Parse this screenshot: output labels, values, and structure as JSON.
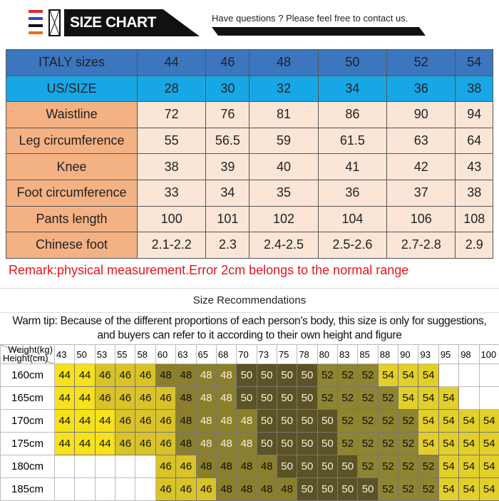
{
  "header": {
    "logo_text": "SIZE CHART",
    "contact": "Have questions ? Please feel free to contact us.",
    "stripe_colors": [
      "#e42a26",
      "#2350c8",
      "#111111",
      "#ee6a1e"
    ]
  },
  "size_table": {
    "header_row": {
      "label": "ITALY sizes",
      "values": [
        "44",
        "46",
        "48",
        "50",
        "52",
        "54"
      ]
    },
    "us_row": {
      "label": "US/SIZE",
      "values": [
        "28",
        "30",
        "32",
        "34",
        "36",
        "38"
      ]
    },
    "rows": [
      {
        "label": "Waistline",
        "values": [
          "72",
          "76",
          "81",
          "86",
          "90",
          "94"
        ]
      },
      {
        "label": "Leg circumference",
        "values": [
          "55",
          "56.5",
          "59",
          "61.5",
          "63",
          "64"
        ]
      },
      {
        "label": "Knee",
        "values": [
          "38",
          "39",
          "40",
          "41",
          "42",
          "43"
        ]
      },
      {
        "label": "Foot circumference",
        "values": [
          "33",
          "34",
          "35",
          "36",
          "37",
          "38"
        ]
      },
      {
        "label": "Pants length",
        "values": [
          "100",
          "101",
          "102",
          "104",
          "106",
          "108"
        ]
      },
      {
        "label": "Chinese foot",
        "values": [
          "2.1-2.2",
          "2.3",
          "2.4-2.5",
          "2.5-2.6",
          "2.7-2.8",
          "2.9"
        ]
      }
    ]
  },
  "remark": "Remark:physical measurement.Error 2cm belongs to the normal range",
  "recommendations": {
    "title": "Size Recommendations",
    "tip": "Warm tip: Because of the different proportions of each person's body, this size is only for suggestions, and buyers can refer to it according to their own height and figure",
    "corner_weight": "Weight(kg)",
    "corner_height": "Height(cm)",
    "weights": [
      "43",
      "50",
      "53",
      "55",
      "58",
      "60",
      "63",
      "65",
      "68",
      "70",
      "73",
      "75",
      "78",
      "80",
      "83",
      "85",
      "88",
      "90",
      "93",
      "95",
      "98",
      "100"
    ],
    "rows": [
      {
        "height": "160cm",
        "sizes": [
          "44",
          "44",
          "46",
          "46",
          "46",
          "48",
          "48",
          "48",
          "48",
          "50",
          "50",
          "50",
          "50",
          "52",
          "52",
          "52",
          "54",
          "54",
          "54",
          "",
          "",
          ""
        ]
      },
      {
        "height": "165cm",
        "sizes": [
          "44",
          "44",
          "46",
          "46",
          "46",
          "46",
          "48",
          "48",
          "48",
          "50",
          "50",
          "50",
          "50",
          "52",
          "52",
          "52",
          "52",
          "54",
          "54",
          "54",
          "",
          ""
        ]
      },
      {
        "height": "170cm",
        "sizes": [
          "44",
          "44",
          "44",
          "46",
          "46",
          "46",
          "48",
          "48",
          "48",
          "48",
          "50",
          "50",
          "50",
          "50",
          "52",
          "52",
          "52",
          "52",
          "54",
          "54",
          "54",
          "54"
        ]
      },
      {
        "height": "175cm",
        "sizes": [
          "44",
          "44",
          "44",
          "46",
          "46",
          "46",
          "48",
          "48",
          "48",
          "48",
          "50",
          "50",
          "50",
          "50",
          "52",
          "52",
          "52",
          "52",
          "54",
          "54",
          "54",
          "54"
        ]
      },
      {
        "height": "180cm",
        "sizes": [
          "",
          "",
          "",
          "",
          "",
          "46",
          "46",
          "48",
          "48",
          "48",
          "48",
          "50",
          "50",
          "50",
          "50",
          "52",
          "52",
          "52",
          "52",
          "54",
          "54",
          "54"
        ]
      },
      {
        "height": "185cm",
        "sizes": [
          "",
          "",
          "",
          "",
          "",
          "46",
          "46",
          "46",
          "48",
          "48",
          "48",
          "48",
          "50",
          "50",
          "50",
          "50",
          "52",
          "52",
          "52",
          "54",
          "54",
          "54"
        ]
      }
    ],
    "size_colors": {
      "44": "#f6e11c",
      "46": "#d9c328",
      "48": "#8c7f2c",
      "50": "#5b5325",
      "52": "#8e8431",
      "54": "#e3cf2a"
    }
  }
}
